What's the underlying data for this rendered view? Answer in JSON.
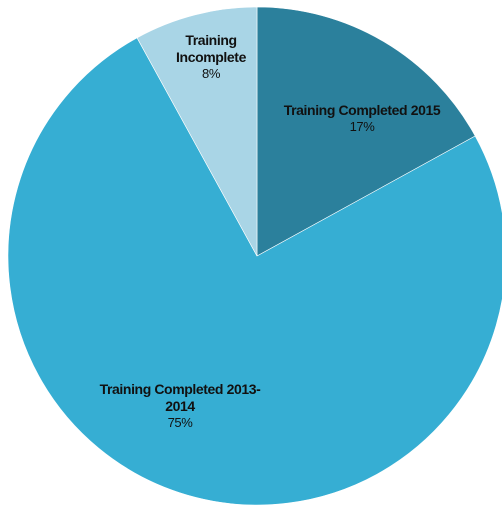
{
  "chart_data": {
    "type": "pie",
    "categories": [
      "Training Completed 2015",
      "Training Completed 2013-2014",
      "Training Incomplete"
    ],
    "values": [
      17,
      75,
      8
    ],
    "value_labels": [
      "17%",
      "75%",
      "8%"
    ],
    "colors": [
      "#2b809c",
      "#36aed3",
      "#a9d5e6"
    ]
  }
}
